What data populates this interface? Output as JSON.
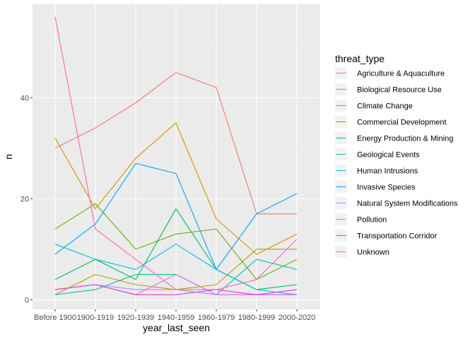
{
  "chart_data": {
    "type": "line",
    "xlabel": "year_last_seen",
    "ylabel": "n",
    "ylim": [
      -1.9,
      58.5
    ],
    "yticks": [
      0,
      20,
      40
    ],
    "grid": true,
    "legend_position": "right",
    "legend_title": "threat_type",
    "categories": [
      "Before 1900",
      "1900-1919",
      "1920-1939",
      "1940-1959",
      "1960-1979",
      "1980-1999",
      "2000-2020"
    ],
    "series": [
      {
        "name": "Agriculture & Aquaculture",
        "color": "#F8766D",
        "values": [
          30,
          34,
          39,
          45,
          42,
          17,
          17
        ]
      },
      {
        "name": "Biological Resource Use",
        "color": "#DB8E00",
        "values": [
          32,
          18,
          28,
          35,
          16,
          9,
          13
        ]
      },
      {
        "name": "Climate Change",
        "color": "#AEA200",
        "values": [
          1,
          5,
          3,
          2,
          3,
          10,
          10
        ]
      },
      {
        "name": "Commercial Development",
        "color": "#64B200",
        "values": [
          14,
          19,
          10,
          13,
          14,
          4,
          8
        ]
      },
      {
        "name": "Energy Production & Mining",
        "color": "#00BD5C",
        "values": [
          4,
          8,
          4,
          18,
          6,
          2,
          3
        ]
      },
      {
        "name": "Geological Events",
        "color": "#00C1A7",
        "values": [
          1,
          2,
          5,
          5,
          1,
          8,
          6
        ]
      },
      {
        "name": "Human Intrusions",
        "color": "#00BADE",
        "values": [
          11,
          8,
          6,
          11,
          6,
          2,
          1
        ]
      },
      {
        "name": "Invasive Species",
        "color": "#00A6FF",
        "values": [
          9,
          15,
          27,
          25,
          6,
          17,
          21
        ]
      },
      {
        "name": "Natural System Modifications",
        "color": "#B385FF",
        "values": [
          2,
          3,
          2,
          2,
          1,
          1,
          1
        ]
      },
      {
        "name": "Pollution",
        "color": "#EF67EB",
        "values": [
          2,
          3,
          1,
          5,
          1,
          1,
          1
        ]
      },
      {
        "name": "Transportation Corridor",
        "color": "#E040C9",
        "values": [
          2,
          3,
          1,
          1,
          2,
          1,
          2
        ]
      },
      {
        "name": "Unknown",
        "color": "#FF63B6",
        "values": [
          56,
          14,
          8,
          2,
          2,
          4,
          12
        ]
      }
    ]
  },
  "style": {
    "panel_bg": "#EBEBEB",
    "grid_major": "#FFFFFF",
    "tick_color": "#333333"
  }
}
